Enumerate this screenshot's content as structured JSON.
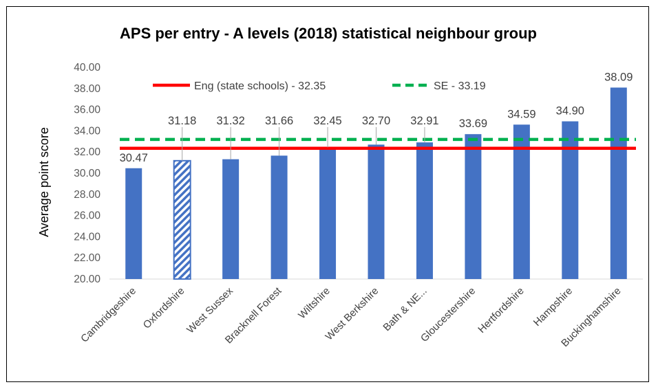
{
  "chart_data": {
    "type": "bar",
    "title": "APS per entry - A levels (2018) statistical neighbour group",
    "xlabel": "",
    "ylabel": "Average point score",
    "ylim": [
      20,
      40
    ],
    "ytick_step": 2,
    "ytick_labels": [
      "20.00",
      "22.00",
      "24.00",
      "26.00",
      "28.00",
      "30.00",
      "32.00",
      "34.00",
      "36.00",
      "38.00",
      "40.00"
    ],
    "grid": false,
    "categories": [
      "Cambridgeshire",
      "Oxfordshire",
      "West Sussex",
      "Bracknell Forest",
      "Wiltshire",
      "West Berkshire",
      "Bath & NE...",
      "Gloucestershire",
      "Hertfordshire",
      "Hampshire",
      "Buckinghamshire"
    ],
    "values": [
      30.47,
      31.18,
      31.32,
      31.66,
      32.45,
      32.7,
      32.91,
      33.69,
      34.59,
      34.9,
      38.09
    ],
    "value_labels": [
      "30.47",
      "31.18",
      "31.32",
      "31.66",
      "32.45",
      "32.70",
      "32.91",
      "33.69",
      "34.59",
      "34.90",
      "38.09"
    ],
    "highlight_category": "Oxfordshire",
    "bar_color": "#4472C4",
    "reference_lines": [
      {
        "name": "Eng (state schools) - 32.35",
        "value": 32.35,
        "color": "#FF0000",
        "style": "solid"
      },
      {
        "name": "SE - 33.19",
        "value": 33.19,
        "color": "#00B050",
        "style": "dashed"
      }
    ],
    "legend_position": "top"
  }
}
